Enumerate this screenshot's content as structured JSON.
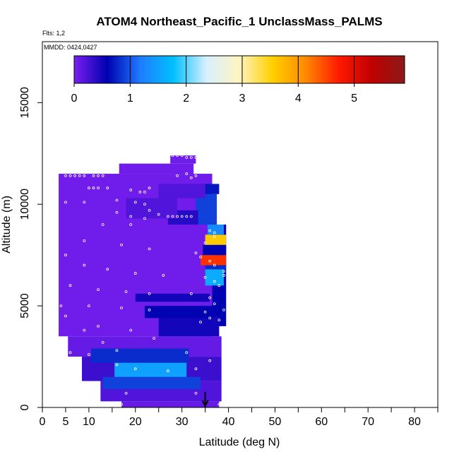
{
  "chart_data": {
    "type": "heatmap",
    "title": "ATOM4 Northeast_Pacific_1 UnclassMass_PALMS",
    "flights_label": "Flts: 1,2",
    "dates_label": "MMDD: 0424,0427",
    "xlabel": "Latitude (deg N)",
    "ylabel": "Altitude (m)",
    "xlim": [
      0,
      85
    ],
    "ylim": [
      0,
      18000
    ],
    "x_ticks": [
      0,
      5,
      10,
      20,
      30,
      40,
      50,
      60,
      70,
      80
    ],
    "y_ticks": [
      0,
      5000,
      10000,
      15000
    ],
    "colorbar": {
      "range": [
        0,
        5.9
      ],
      "ticks": [
        0,
        1,
        2,
        3,
        4,
        5
      ],
      "colors": [
        "#7a1ff0",
        "#0000b0",
        "#1e7cff",
        "#00c0ff",
        "#d8f0ff",
        "#fff4c0",
        "#ffd000",
        "#ff8a00",
        "#ff1a00",
        "#c00000",
        "#8b1a1a"
      ]
    },
    "cells": [
      {
        "lat0": 3.5,
        "lat1": 36.5,
        "alt0": 3500,
        "alt1": 11500,
        "value": 0.05
      },
      {
        "lat0": 16.5,
        "lat1": 32.5,
        "alt0": 11500,
        "alt1": 12000,
        "value": 0.05
      },
      {
        "lat0": 27.5,
        "lat1": 33,
        "alt0": 12000,
        "alt1": 12400,
        "value": 0.05
      },
      {
        "lat0": 5.5,
        "lat1": 38.5,
        "alt0": 2500,
        "alt1": 3500,
        "value": 0.1
      },
      {
        "lat0": 8.5,
        "lat1": 38.5,
        "alt0": 1300,
        "alt1": 2500,
        "value": 0.3
      },
      {
        "lat0": 12.5,
        "lat1": 38.5,
        "alt0": 300,
        "alt1": 1300,
        "value": 0.2
      },
      {
        "lat0": 17,
        "lat1": 38,
        "alt0": 0,
        "alt1": 300,
        "value": 0.1
      },
      {
        "lat0": 36.5,
        "lat1": 39.5,
        "alt0": 4000,
        "alt1": 9000,
        "value": 0.6
      },
      {
        "lat0": 33,
        "lat1": 37.5,
        "alt0": 9000,
        "alt1": 10500,
        "value": 0.9
      },
      {
        "lat0": 35,
        "lat1": 38,
        "alt0": 10500,
        "alt1": 11000,
        "value": 0.7
      },
      {
        "lat0": 10.5,
        "lat1": 31.5,
        "alt0": 2200,
        "alt1": 2900,
        "value": 0.8
      },
      {
        "lat0": 15.5,
        "lat1": 31,
        "alt0": 1500,
        "alt1": 2200,
        "value": 1.5
      },
      {
        "lat0": 13,
        "lat1": 34,
        "alt0": 900,
        "alt1": 1500,
        "value": 0.9
      },
      {
        "lat0": 25,
        "lat1": 38,
        "alt0": 3500,
        "alt1": 4500,
        "value": 0.5
      },
      {
        "lat0": 20,
        "lat1": 36,
        "alt0": 5200,
        "alt1": 5600,
        "value": 0.5
      },
      {
        "lat0": 22,
        "lat1": 36.5,
        "alt0": 4400,
        "alt1": 5000,
        "value": 0.6
      },
      {
        "lat0": 35,
        "lat1": 39,
        "alt0": 6000,
        "alt1": 6800,
        "value": 1.6
      },
      {
        "lat0": 35,
        "lat1": 39.5,
        "alt0": 6800,
        "alt1": 7300,
        "value": 0.8
      },
      {
        "lat0": 34,
        "lat1": 39.5,
        "alt0": 7000,
        "alt1": 7500,
        "value": 4.6
      },
      {
        "lat0": 34.5,
        "lat1": 39.5,
        "alt0": 7500,
        "alt1": 8000,
        "value": 0.6
      },
      {
        "lat0": 35,
        "lat1": 39.5,
        "alt0": 8000,
        "alt1": 8500,
        "value": 3.6
      },
      {
        "lat0": 35.5,
        "lat1": 39,
        "alt0": 8500,
        "alt1": 9000,
        "value": 1.3
      },
      {
        "lat0": 27,
        "lat1": 33.5,
        "alt0": 9000,
        "alt1": 9700,
        "value": 0.4
      },
      {
        "lat0": 18,
        "lat1": 29,
        "alt0": 9300,
        "alt1": 10300,
        "value": 0.2
      },
      {
        "lat0": 25,
        "lat1": 35,
        "alt0": 10300,
        "alt1": 11000,
        "value": 0.2
      }
    ],
    "points": [
      [
        5,
        11400
      ],
      [
        6,
        11400
      ],
      [
        7,
        11400
      ],
      [
        8,
        11400
      ],
      [
        9,
        11400
      ],
      [
        11,
        11400
      ],
      [
        12,
        11400
      ],
      [
        13,
        11400
      ],
      [
        10,
        10800
      ],
      [
        11,
        10800
      ],
      [
        12,
        10800
      ],
      [
        14,
        10800
      ],
      [
        19,
        10700
      ],
      [
        21,
        10600
      ],
      [
        22,
        10600
      ],
      [
        23,
        10800
      ],
      [
        29,
        11400
      ],
      [
        31,
        11500
      ],
      [
        32,
        11300
      ],
      [
        33,
        11400
      ],
      [
        26,
        12500
      ],
      [
        27,
        12400
      ],
      [
        28,
        12400
      ],
      [
        29,
        12400
      ],
      [
        30,
        12400
      ],
      [
        31,
        12300
      ],
      [
        32,
        12300
      ],
      [
        33,
        12300
      ],
      [
        5,
        10100
      ],
      [
        9,
        10100
      ],
      [
        16,
        10200
      ],
      [
        20,
        10100
      ],
      [
        22,
        10000
      ],
      [
        23,
        9700
      ],
      [
        25,
        9500
      ],
      [
        27,
        9400
      ],
      [
        28,
        9400
      ],
      [
        29,
        9400
      ],
      [
        30,
        9400
      ],
      [
        31,
        9400
      ],
      [
        32,
        9400
      ],
      [
        16,
        9600
      ],
      [
        19,
        9400
      ],
      [
        22,
        9300
      ],
      [
        13,
        9000
      ],
      [
        19,
        9000
      ],
      [
        36,
        8700
      ],
      [
        37,
        8600
      ],
      [
        35,
        8100
      ],
      [
        37,
        8400
      ],
      [
        9,
        8200
      ],
      [
        17,
        8000
      ],
      [
        23,
        7800
      ],
      [
        33,
        7600
      ],
      [
        34,
        7400
      ],
      [
        36,
        7200
      ],
      [
        37,
        7000
      ],
      [
        39,
        6700
      ],
      [
        39,
        6500
      ],
      [
        5,
        7500
      ],
      [
        9,
        7000
      ],
      [
        14,
        6800
      ],
      [
        20,
        6600
      ],
      [
        26,
        6500
      ],
      [
        35,
        6400
      ],
      [
        37,
        6200
      ],
      [
        38,
        6000
      ],
      [
        6,
        6000
      ],
      [
        12,
        5800
      ],
      [
        18,
        5700
      ],
      [
        23,
        5600
      ],
      [
        32,
        5600
      ],
      [
        36,
        5400
      ],
      [
        37,
        5100
      ],
      [
        4,
        5000
      ],
      [
        10,
        5000
      ],
      [
        17,
        4900
      ],
      [
        23,
        4800
      ],
      [
        35,
        4700
      ],
      [
        39,
        4800
      ],
      [
        36,
        4400
      ],
      [
        38,
        4300
      ],
      [
        34,
        4200
      ],
      [
        5,
        4500
      ],
      [
        12,
        4000
      ],
      [
        9,
        3800
      ],
      [
        19,
        3800
      ],
      [
        24,
        3400
      ],
      [
        6,
        2700
      ],
      [
        13,
        3200
      ],
      [
        16,
        2800
      ],
      [
        10,
        2600
      ],
      [
        16,
        2100
      ],
      [
        20,
        1900
      ],
      [
        27,
        1800
      ],
      [
        33,
        1900
      ],
      [
        36,
        2300
      ],
      [
        31,
        2700
      ],
      [
        18,
        700
      ],
      [
        33,
        700
      ],
      [
        17,
        150
      ],
      [
        38,
        150
      ]
    ],
    "arrow_lat": 35
  }
}
